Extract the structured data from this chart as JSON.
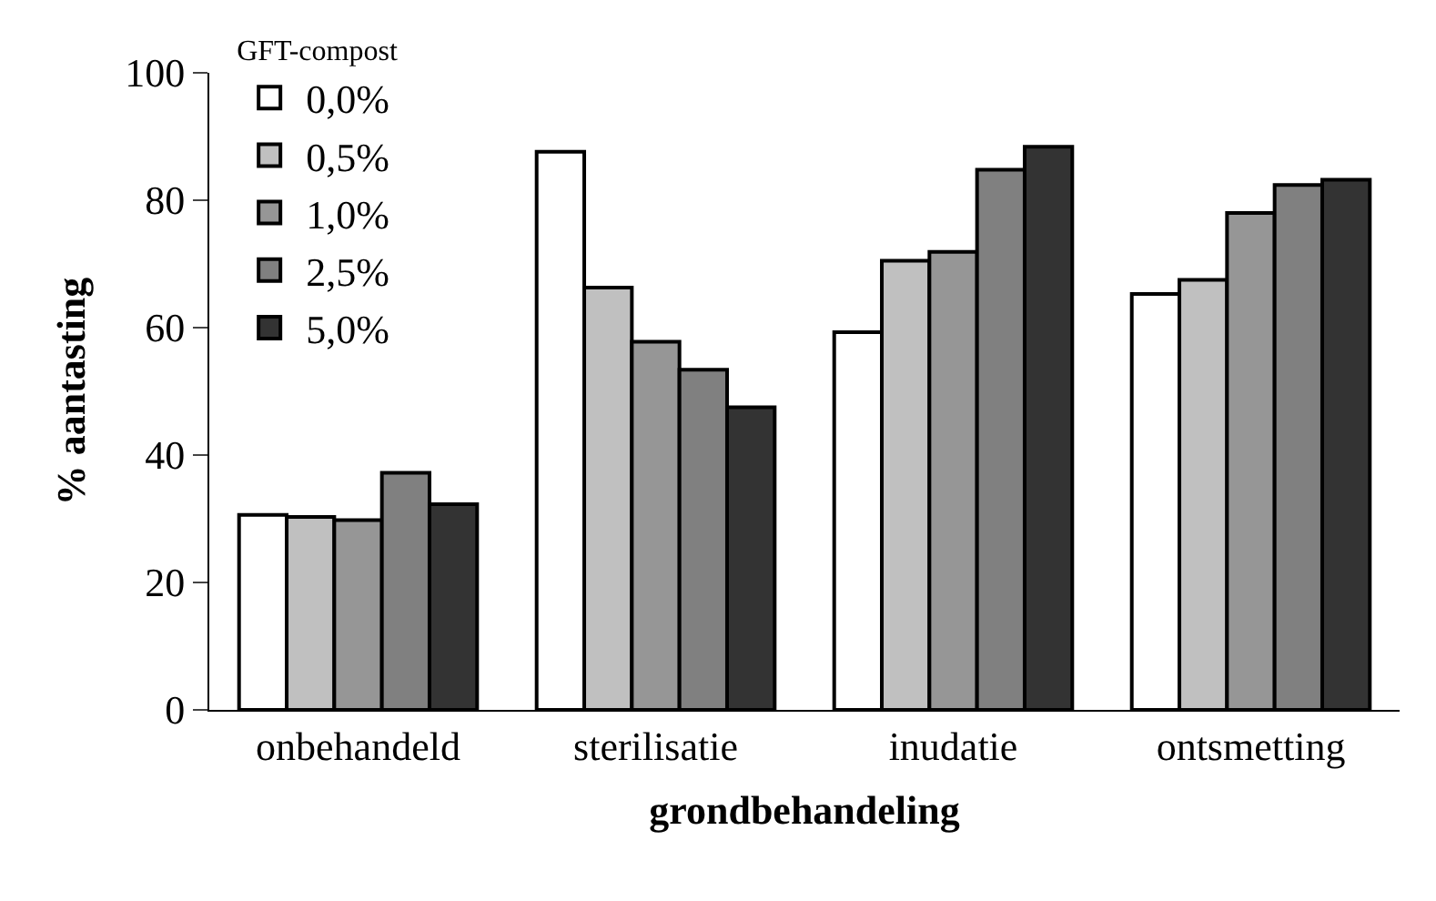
{
  "chart_data": {
    "type": "bar",
    "xlabel": "grondbehandeling",
    "ylabel": "% aantasting",
    "legend_title": "GFT-compost",
    "categories": [
      "onbehandeld",
      "sterilisatie",
      "inudatie",
      "ontsmetting"
    ],
    "series": [
      {
        "name": "0,0%",
        "color": "#ffffff",
        "values": [
          30.6,
          87.6,
          59.3,
          65.3
        ]
      },
      {
        "name": "0,5%",
        "color": "#c0c0c0",
        "values": [
          30.3,
          66.3,
          70.5,
          67.5
        ]
      },
      {
        "name": "1,0%",
        "color": "#969696",
        "values": [
          29.8,
          57.8,
          71.9,
          78.0
        ]
      },
      {
        "name": "2,5%",
        "color": "#808080",
        "values": [
          37.2,
          53.4,
          84.8,
          82.4
        ]
      },
      {
        "name": "5,0%",
        "color": "#333333",
        "values": [
          32.3,
          47.5,
          88.4,
          83.2
        ]
      }
    ],
    "ylim": [
      0,
      100
    ],
    "yticks": [
      0,
      20,
      40,
      60,
      80,
      100
    ],
    "legend": "top left"
  }
}
